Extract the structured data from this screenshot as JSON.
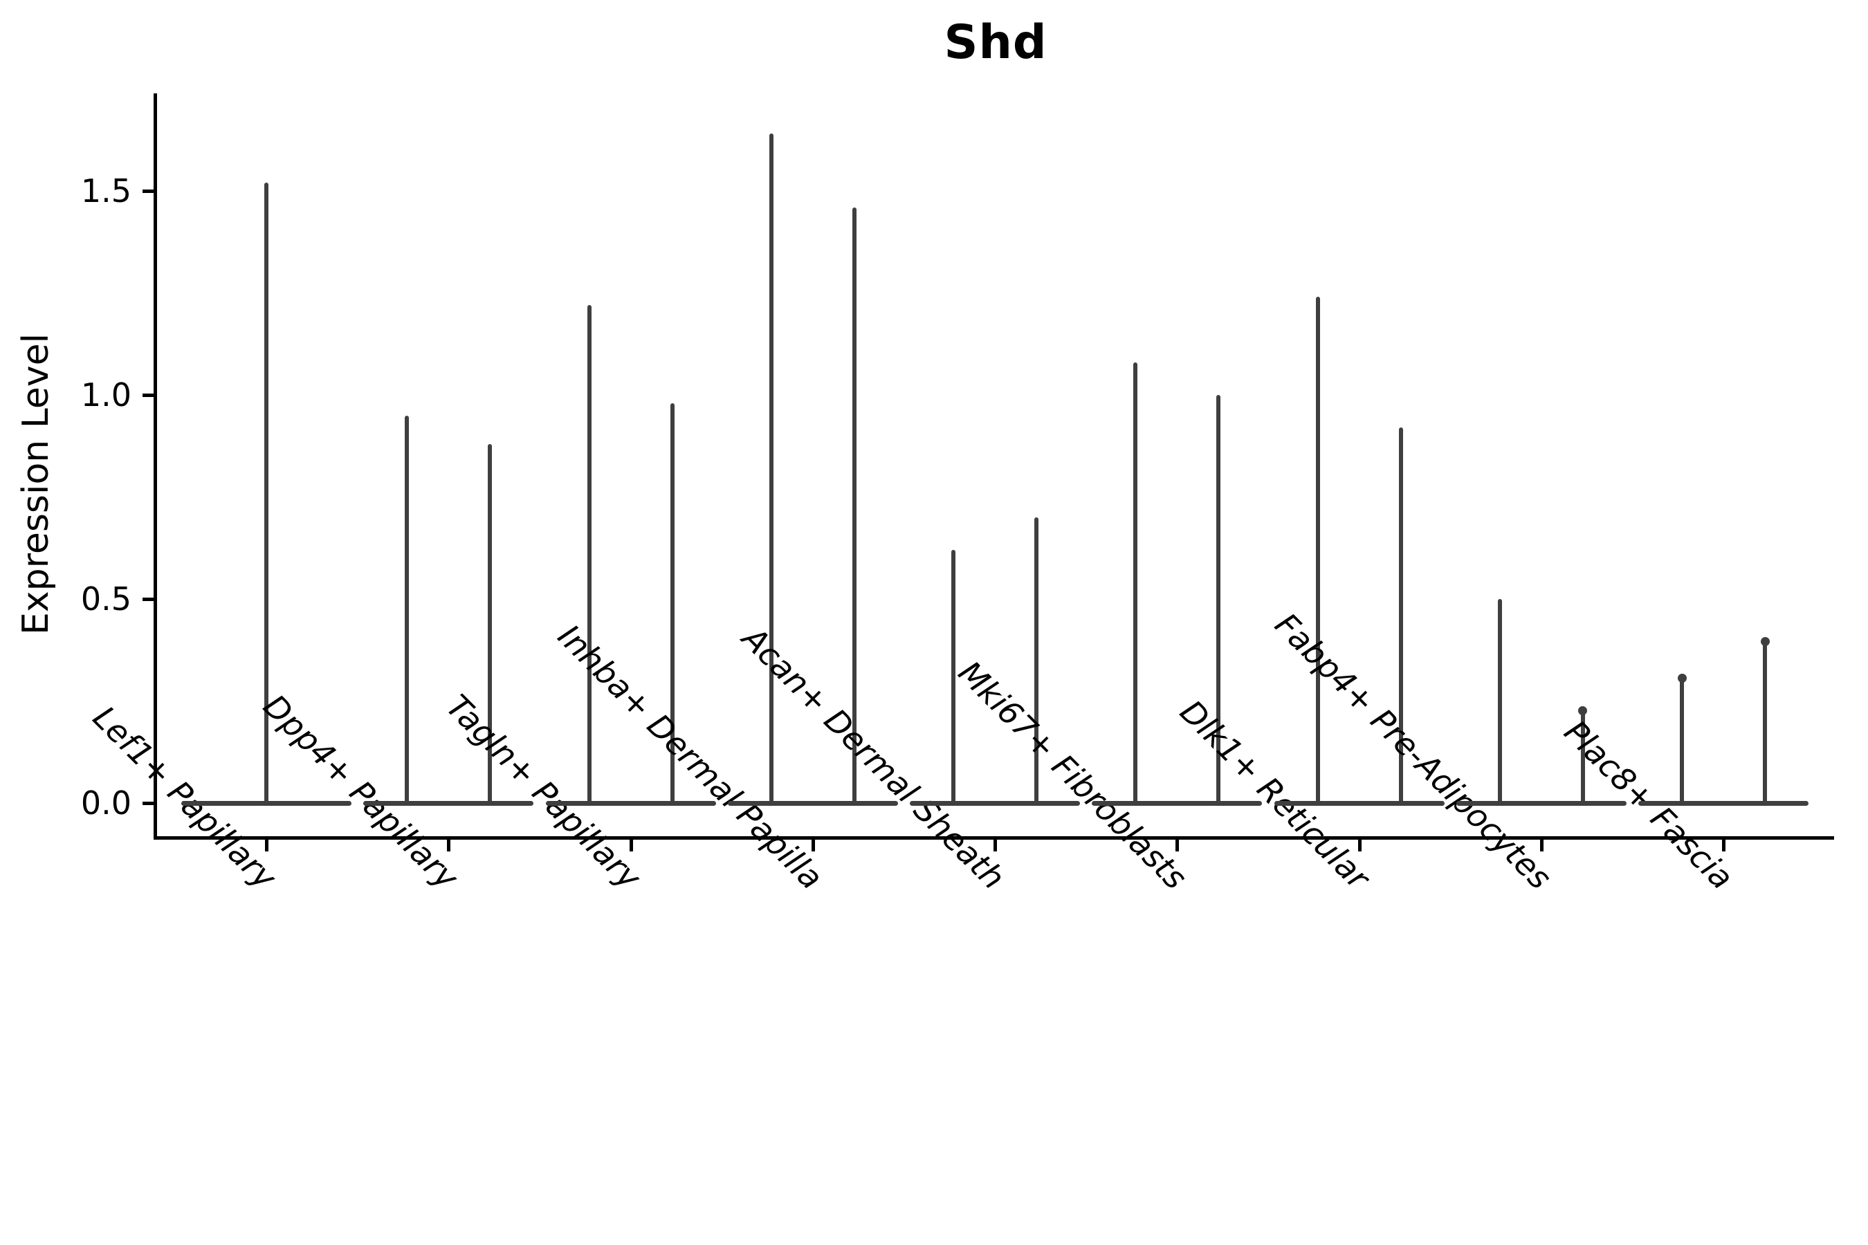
{
  "title": "Shd",
  "colors": {
    "violin": "#3f3f3f",
    "axis": "#000000",
    "text": "#000000",
    "background": "#ffffff"
  },
  "chart_data": {
    "type": "violin",
    "title": "Shd",
    "ylabel": "Expression Level",
    "xlabel": "",
    "ylim": [
      -0.09,
      1.74
    ],
    "yticks": [
      1.5,
      1.0,
      0.5,
      0.0
    ],
    "ytick_labels": [
      "1.5",
      "1.0",
      "0.5",
      "0.0"
    ],
    "grid": false,
    "legend": "none",
    "style_note": "Needle-thin dark-gray violins: wide flat base at expression 0 with a single thin spike up to the max value; one violin for the first category, two side-by-side violins for all other categories; x labels italic, rotated 45 degrees.",
    "groups": [
      {
        "label": "Lef1+ Papillary",
        "violins": [
          {
            "max": 1.52
          }
        ]
      },
      {
        "label": "Dpp4+ Papillary",
        "violins": [
          {
            "max": 0.95
          },
          {
            "max": 0.88
          }
        ]
      },
      {
        "label": "Tagln+ Papillary",
        "violins": [
          {
            "max": 1.22
          },
          {
            "max": 0.98
          }
        ]
      },
      {
        "label": "Inhba+ Dermal Papilla",
        "violins": [
          {
            "max": 1.64
          },
          {
            "max": 1.46
          }
        ]
      },
      {
        "label": "Acan+ Dermal Sheath",
        "violins": [
          {
            "max": 0.62
          },
          {
            "max": 0.7
          }
        ]
      },
      {
        "label": "Mki67+ Fibroblasts",
        "violins": [
          {
            "max": 1.08
          },
          {
            "max": 1.0
          }
        ]
      },
      {
        "label": "Dlk1+ Reticular",
        "violins": [
          {
            "max": 1.24
          },
          {
            "max": 0.92
          }
        ]
      },
      {
        "label": "Fabp4+ Pre-Adipocytes",
        "violins": [
          {
            "max": 0.5
          },
          {
            "max": 0.23,
            "tip_bulge": true
          }
        ]
      },
      {
        "label": "Plac8+ Fascia",
        "violins": [
          {
            "max": 0.31,
            "tip_bulge": true
          },
          {
            "max": 0.4,
            "tip_bulge": true
          }
        ]
      }
    ]
  }
}
